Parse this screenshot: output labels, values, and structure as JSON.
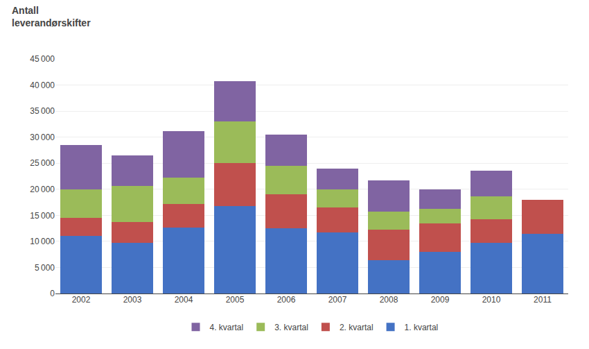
{
  "chart_data": {
    "type": "bar",
    "title": "Antall\nleverandørskifter",
    "categories": [
      "2002",
      "2003",
      "2004",
      "2005",
      "2006",
      "2007",
      "2008",
      "2009",
      "2010",
      "2011"
    ],
    "series": [
      {
        "name": "1. kvartal",
        "color": "#4472C4",
        "values": [
          11000,
          9700,
          12700,
          16800,
          12500,
          11700,
          6400,
          8000,
          9700,
          11500
        ]
      },
      {
        "name": "2. kvartal",
        "color": "#C0504D",
        "values": [
          3500,
          4000,
          4500,
          8200,
          6500,
          4800,
          5800,
          5500,
          4500,
          6500
        ]
      },
      {
        "name": "3. kvartal",
        "color": "#9BBB59",
        "values": [
          5500,
          7000,
          5000,
          8000,
          5500,
          3500,
          3500,
          2800,
          4500,
          0
        ]
      },
      {
        "name": "4. kvartal",
        "color": "#8064A2",
        "values": [
          8500,
          5800,
          9000,
          7800,
          6000,
          4000,
          6000,
          3700,
          4800,
          0
        ]
      }
    ],
    "stacked": true,
    "ylim": [
      0,
      45000
    ],
    "yticks": [
      0,
      {
        "value": 5000,
        "label": "5 000"
      },
      {
        "value": 10000,
        "label": "10 000"
      },
      {
        "value": 15000,
        "label": "15 000"
      },
      {
        "value": 20000,
        "label": "20 000"
      },
      {
        "value": 25000,
        "label": "25 000"
      },
      {
        "value": 30000,
        "label": "30 000"
      },
      {
        "value": 35000,
        "label": "35 000"
      },
      {
        "value": 40000,
        "label": "40 000"
      },
      {
        "value": 45000,
        "label": "45 000"
      }
    ],
    "grid": true,
    "legend": "bottom"
  }
}
